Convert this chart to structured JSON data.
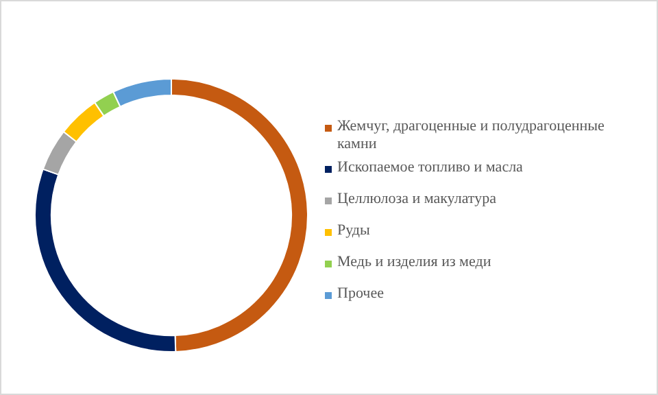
{
  "chart_data": {
    "type": "donut",
    "categories": [
      "Жемчуг, драгоценные и полудрагоценные камни",
      "Ископаемое топливо и масла",
      "Целлюлоза и макулатура",
      "Руды",
      "Медь и изделия из меди",
      "Прочее"
    ],
    "values": [
      49.5,
      31,
      5,
      5,
      2.5,
      7
    ],
    "colors": [
      "#c55a11",
      "#002060",
      "#a5a5a5",
      "#ffc000",
      "#92d050",
      "#5b9bd5"
    ],
    "legend": "right"
  }
}
